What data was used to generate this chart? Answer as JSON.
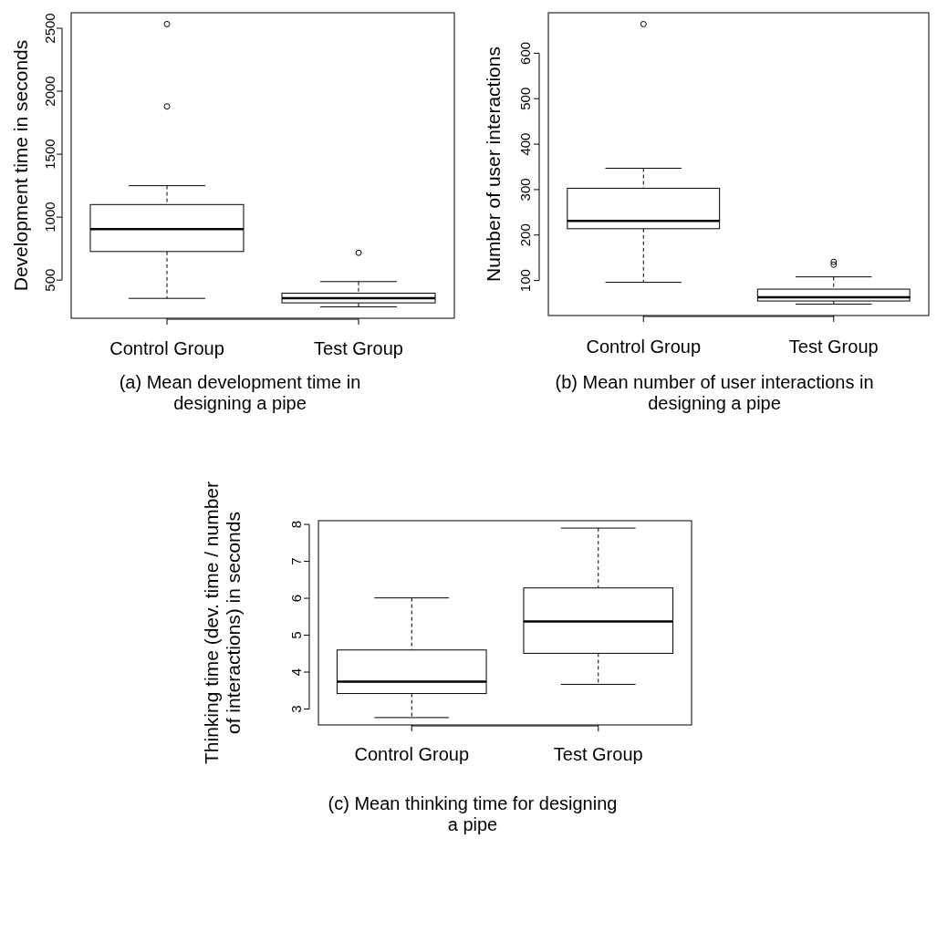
{
  "chart_data": [
    {
      "type": "box",
      "categories": [
        "Control Group",
        "Test Group"
      ],
      "ylabel": "Development time in seconds",
      "ylim": [
        197,
        2623
      ],
      "yticks": [
        500,
        1000,
        1500,
        2000,
        2500
      ],
      "boxes": [
        {
          "low": 355,
          "q1": 727,
          "median": 905,
          "q3": 1100,
          "high": 1250,
          "outliers": [
            1879,
            2533
          ]
        },
        {
          "low": 287,
          "q1": 319,
          "median": 357,
          "q3": 396,
          "high": 488,
          "outliers": [
            717
          ]
        }
      ],
      "annotations": [
        "(a) Mean development time in\ndesigning a pipe"
      ]
    },
    {
      "type": "box",
      "categories": [
        "Control Group",
        "Test Group"
      ],
      "ylabel": "Number of user interactions",
      "ylim": [
        23,
        689
      ],
      "yticks": [
        100,
        200,
        300,
        400,
        500,
        600
      ],
      "boxes": [
        {
          "low": 96,
          "q1": 214,
          "median": 231,
          "q3": 303,
          "high": 347,
          "outliers": [
            664
          ]
        },
        {
          "low": 48,
          "q1": 55,
          "median": 63,
          "q3": 81,
          "high": 108,
          "outliers": [
            135,
            141
          ]
        }
      ],
      "annotations": [
        "(b) Mean number of user interactions in\ndesigning a pipe"
      ]
    },
    {
      "type": "box",
      "categories": [
        "Control Group",
        "Test Group"
      ],
      "ylabel": "Thinking time (dev. time / number\nof interactions) in seconds",
      "ylim": [
        2.57,
        8.1
      ],
      "yticks": [
        3,
        4,
        5,
        6,
        7,
        8
      ],
      "boxes": [
        {
          "low": 2.77,
          "q1": 3.42,
          "median": 3.74,
          "q3": 4.6,
          "high": 6.01
        },
        {
          "low": 3.67,
          "q1": 4.51,
          "median": 5.37,
          "q3": 6.28,
          "high": 7.9
        }
      ],
      "annotations": [
        "(c) Mean thinking time for designing\na pipe"
      ]
    }
  ]
}
